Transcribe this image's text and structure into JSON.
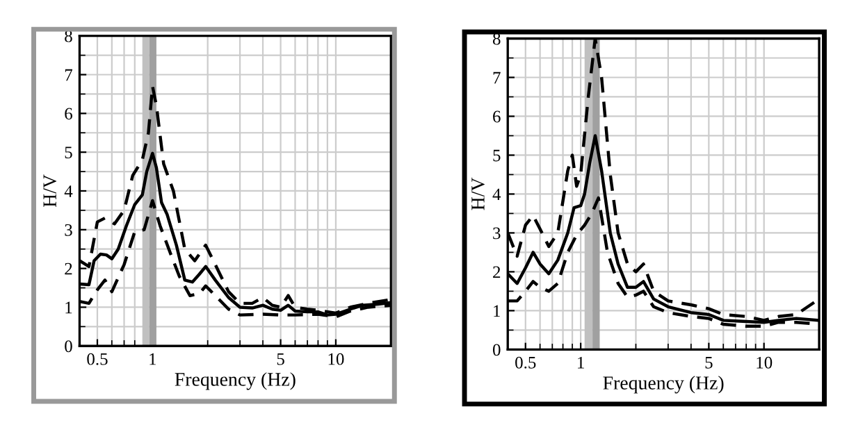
{
  "chart_data": [
    {
      "type": "line",
      "xlabel": "Frequency (Hz)",
      "ylabel": "H/V",
      "log": "x",
      "xlim": [
        0.4,
        20
      ],
      "ylim": [
        0,
        8
      ],
      "xticks": [
        0.5,
        1,
        5,
        10
      ],
      "yticks": [
        0,
        1,
        2,
        3,
        4,
        5,
        6,
        7,
        8
      ],
      "grid": true,
      "legend": false,
      "bands": [
        {
          "axis": "x",
          "from": 0.88,
          "to": 0.96,
          "color": "#c0c0c0"
        },
        {
          "axis": "x",
          "from": 0.96,
          "to": 1.05,
          "color": "#a0a0a0"
        }
      ],
      "series": [
        {
          "color": "#000000",
          "line_style": "solid",
          "x": [
            0.4,
            0.45,
            0.48,
            0.52,
            0.56,
            0.6,
            0.65,
            0.72,
            0.8,
            0.88,
            0.93,
            1.0,
            1.05,
            1.12,
            1.2,
            1.35,
            1.5,
            1.65,
            1.8,
            1.95,
            2.2,
            2.6,
            3.0,
            3.5,
            4.0,
            4.5,
            5.0,
            5.5,
            6.0,
            7,
            8,
            9,
            10,
            12,
            14,
            17,
            20
          ],
          "values": [
            1.6,
            1.58,
            2.2,
            2.37,
            2.35,
            2.25,
            2.5,
            3.1,
            3.65,
            3.9,
            4.5,
            4.97,
            4.6,
            3.7,
            3.4,
            2.6,
            1.7,
            1.65,
            1.85,
            2.05,
            1.7,
            1.25,
            1.0,
            0.98,
            1.05,
            0.95,
            0.92,
            1.05,
            0.9,
            0.88,
            0.88,
            0.8,
            0.82,
            0.95,
            1.05,
            1.08,
            1.12
          ]
        },
        {
          "color": "#000000",
          "line_style": "dashed",
          "x": [
            0.4,
            0.45,
            0.5,
            0.55,
            0.62,
            0.7,
            0.78,
            0.88,
            0.95,
            1.0,
            1.05,
            1.15,
            1.3,
            1.5,
            1.7,
            1.95,
            2.2,
            2.6,
            3.0,
            3.5,
            4.0,
            4.5,
            5.0,
            5.5,
            6.0,
            7,
            8,
            10,
            12,
            15,
            20
          ],
          "values": [
            2.2,
            2.05,
            3.2,
            3.3,
            3.15,
            3.5,
            4.4,
            4.8,
            5.5,
            6.7,
            6.2,
            4.7,
            4.0,
            2.5,
            2.2,
            2.6,
            2.1,
            1.4,
            1.1,
            1.1,
            1.25,
            1.05,
            1.0,
            1.3,
            1.0,
            0.95,
            0.92,
            0.85,
            1.0,
            1.1,
            1.2
          ]
        },
        {
          "color": "#000000",
          "line_style": "dashed",
          "x": [
            0.4,
            0.45,
            0.5,
            0.55,
            0.6,
            0.7,
            0.8,
            0.9,
            1.0,
            1.1,
            1.25,
            1.4,
            1.6,
            1.8,
            1.95,
            2.2,
            2.6,
            3,
            4,
            5,
            6,
            8,
            10,
            12,
            15,
            20
          ],
          "values": [
            1.15,
            1.1,
            1.45,
            1.7,
            1.4,
            2.1,
            2.95,
            3.0,
            3.75,
            3.1,
            2.4,
            1.8,
            1.3,
            1.35,
            1.55,
            1.3,
            0.95,
            0.8,
            0.82,
            0.8,
            0.8,
            0.82,
            0.75,
            0.9,
            1.0,
            1.05
          ]
        }
      ]
    },
    {
      "type": "line",
      "xlabel": "Frequency (Hz)",
      "ylabel": "H/V",
      "log": "x",
      "xlim": [
        0.4,
        20
      ],
      "ylim": [
        0,
        8
      ],
      "xticks": [
        0.5,
        1,
        5,
        10
      ],
      "yticks": [
        0,
        1,
        2,
        3,
        4,
        5,
        6,
        7,
        8
      ],
      "grid": true,
      "legend": false,
      "bands": [
        {
          "axis": "x",
          "from": 1.05,
          "to": 1.16,
          "color": "#c0c0c0"
        },
        {
          "axis": "x",
          "from": 1.16,
          "to": 1.27,
          "color": "#a0a0a0"
        }
      ],
      "series": [
        {
          "color": "#000000",
          "line_style": "solid",
          "x": [
            0.4,
            0.45,
            0.5,
            0.55,
            0.6,
            0.67,
            0.75,
            0.85,
            0.92,
            1.0,
            1.05,
            1.12,
            1.2,
            1.3,
            1.45,
            1.6,
            1.8,
            2.0,
            2.2,
            2.5,
            3,
            4,
            5,
            6,
            8,
            10,
            12,
            15,
            20
          ],
          "values": [
            1.95,
            1.7,
            2.1,
            2.5,
            2.2,
            1.95,
            2.3,
            3.0,
            3.65,
            3.7,
            4.0,
            4.8,
            5.5,
            4.6,
            3.0,
            2.2,
            1.6,
            1.6,
            1.75,
            1.3,
            1.1,
            0.95,
            0.9,
            0.75,
            0.72,
            0.7,
            0.75,
            0.8,
            0.75
          ]
        },
        {
          "color": "#000000",
          "line_style": "dashed",
          "x": [
            0.4,
            0.45,
            0.5,
            0.55,
            0.6,
            0.67,
            0.75,
            0.85,
            0.9,
            0.95,
            1.0,
            1.1,
            1.2,
            1.3,
            1.45,
            1.6,
            1.8,
            2.0,
            2.2,
            2.5,
            3,
            4,
            5,
            6,
            8,
            10,
            12,
            15,
            20
          ],
          "values": [
            3.0,
            2.4,
            3.2,
            3.45,
            3.1,
            2.65,
            3.0,
            4.6,
            5.0,
            4.2,
            4.5,
            6.5,
            8.0,
            7.0,
            4.5,
            3.0,
            2.2,
            2.0,
            2.2,
            1.5,
            1.25,
            1.15,
            1.05,
            0.9,
            0.85,
            0.75,
            0.85,
            0.9,
            1.3
          ]
        },
        {
          "color": "#000000",
          "line_style": "dashed",
          "x": [
            0.4,
            0.45,
            0.5,
            0.55,
            0.6,
            0.67,
            0.75,
            0.85,
            0.95,
            1.05,
            1.15,
            1.25,
            1.4,
            1.6,
            1.8,
            2.0,
            2.2,
            2.5,
            3,
            4,
            5,
            6,
            8,
            10,
            12,
            15,
            20
          ],
          "values": [
            1.25,
            1.25,
            1.5,
            1.75,
            1.6,
            1.5,
            1.7,
            2.5,
            2.95,
            3.2,
            3.5,
            3.9,
            2.5,
            1.7,
            1.35,
            1.4,
            1.5,
            1.1,
            0.95,
            0.85,
            0.8,
            0.65,
            0.6,
            0.6,
            0.7,
            0.7,
            0.65
          ]
        }
      ]
    }
  ]
}
